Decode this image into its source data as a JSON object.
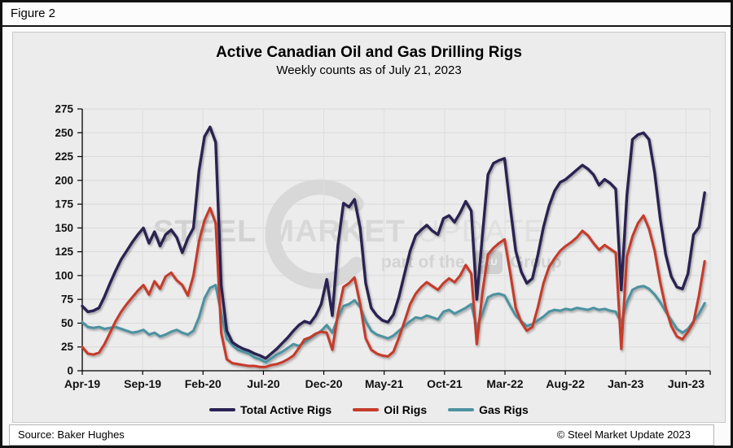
{
  "figure_label": "Figure 2",
  "title": "Active Canadian Oil and Gas Drilling Rigs",
  "subtitle": "Weekly counts as of July 21, 2023",
  "watermark": {
    "word1": "STEEL",
    "word2": "MARKET",
    "word3": "UPDATE",
    "tagline_prefix": "part of the",
    "tagline_box": "CRU",
    "tagline_suffix": "Group"
  },
  "legend": [
    {
      "label": "Total Active Rigs",
      "color": "#292251"
    },
    {
      "label": "Oil Rigs",
      "color": "#c53b2a"
    },
    {
      "label": "Gas Rigs",
      "color": "#4e92a0"
    }
  ],
  "footer": {
    "source": "Source: Baker Hughes",
    "copyright": "© Steel Market Update 2023"
  },
  "chart_data": {
    "type": "line",
    "title": "Active Canadian Oil and Gas Drilling Rigs",
    "subtitle": "Weekly counts as of July 21, 2023",
    "x_tick_labels": [
      "Apr-19",
      "Sep-19",
      "Feb-20",
      "Jul-20",
      "Dec-20",
      "May-21",
      "Oct-21",
      "Mar-22",
      "Aug-22",
      "Jan-23",
      "Jun-23"
    ],
    "x_description": "Weekly rig counts, April 2019 through July 21 2023; series values sampled every 2 weeks (week index 0-224)",
    "weeks_per_tick": 21.733,
    "week_step": 2,
    "total_weeks_span": 226,
    "ylim": [
      0,
      275
    ],
    "y_tick_step": 25,
    "grid": true,
    "legend_position": "bottom",
    "series": [
      {
        "name": "Gas Rigs",
        "color": "#4e92a0",
        "values": [
          51,
          46,
          45,
          46,
          44,
          45,
          46,
          44,
          42,
          40,
          41,
          43,
          38,
          40,
          36,
          38,
          41,
          43,
          40,
          38,
          42,
          56,
          76,
          87,
          90,
          60,
          34,
          27,
          22,
          20,
          18,
          14,
          12,
          9,
          13,
          17,
          20,
          24,
          28,
          26,
          30,
          34,
          38,
          42,
          48,
          40,
          56,
          68,
          70,
          74,
          67,
          52,
          42,
          38,
          36,
          34,
          37,
          42,
          47,
          52,
          56,
          55,
          58,
          56,
          54,
          62,
          64,
          60,
          63,
          66,
          70,
          45,
          60,
          77,
          80,
          81,
          79,
          68,
          58,
          52,
          47,
          49,
          53,
          57,
          62,
          64,
          63,
          65,
          64,
          66,
          65,
          64,
          66,
          64,
          65,
          63,
          62,
          50,
          72,
          85,
          88,
          89,
          86,
          80,
          72,
          62,
          53,
          44,
          40,
          44,
          52,
          60,
          71
        ]
      },
      {
        "name": "Oil Rigs",
        "color": "#c53b2a",
        "values": [
          25,
          18,
          17,
          19,
          28,
          40,
          52,
          62,
          70,
          77,
          84,
          90,
          80,
          94,
          86,
          99,
          103,
          95,
          90,
          79,
          100,
          136,
          158,
          171,
          155,
          40,
          12,
          8,
          7,
          6,
          5,
          5,
          4,
          4,
          6,
          7,
          9,
          12,
          16,
          24,
          33,
          35,
          39,
          41,
          40,
          22,
          60,
          88,
          92,
          98,
          70,
          34,
          22,
          18,
          16,
          15,
          20,
          35,
          52,
          70,
          81,
          88,
          93,
          89,
          85,
          92,
          97,
          93,
          100,
          111,
          102,
          28,
          82,
          122,
          129,
          134,
          138,
          103,
          66,
          51,
          42,
          46,
          67,
          92,
          109,
          118,
          126,
          131,
          135,
          140,
          147,
          142,
          134,
          127,
          132,
          128,
          124,
          23,
          120,
          141,
          155,
          163,
          149,
          126,
          93,
          66,
          47,
          36,
          33,
          41,
          51,
          80,
          115
        ]
      },
      {
        "name": "Total Active Rigs",
        "color": "#292251",
        "values": [
          68,
          62,
          63,
          66,
          78,
          92,
          105,
          117,
          126,
          135,
          143,
          150,
          134,
          146,
          131,
          143,
          148,
          140,
          124,
          139,
          150,
          210,
          246,
          256,
          240,
          90,
          42,
          30,
          26,
          23,
          21,
          18,
          16,
          13,
          18,
          23,
          29,
          35,
          42,
          48,
          52,
          50,
          58,
          70,
          96,
          58,
          132,
          176,
          172,
          180,
          150,
          92,
          66,
          58,
          53,
          51,
          59,
          78,
          102,
          126,
          142,
          148,
          153,
          147,
          143,
          160,
          163,
          156,
          166,
          178,
          168,
          75,
          142,
          206,
          218,
          221,
          223,
          172,
          126,
          104,
          92,
          97,
          122,
          151,
          173,
          189,
          198,
          201,
          206,
          211,
          216,
          212,
          206,
          195,
          201,
          197,
          191,
          85,
          184,
          243,
          248,
          250,
          243,
          208,
          160,
          122,
          99,
          88,
          86,
          102,
          143,
          151,
          187
        ]
      }
    ]
  }
}
